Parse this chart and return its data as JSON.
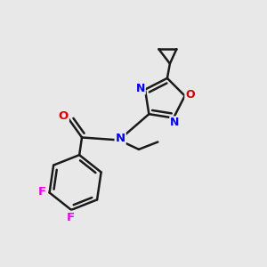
{
  "bg_color": "#e8e8e8",
  "bond_color": "#1a1a1a",
  "bond_width": 1.8,
  "atom_colors": {
    "N": "#0000ee",
    "O_carbonyl": "#dd0000",
    "O_ring": "#cc0000",
    "F": "#ee00ee",
    "C": "#1a1a1a"
  },
  "font_size_atom": 9.5
}
